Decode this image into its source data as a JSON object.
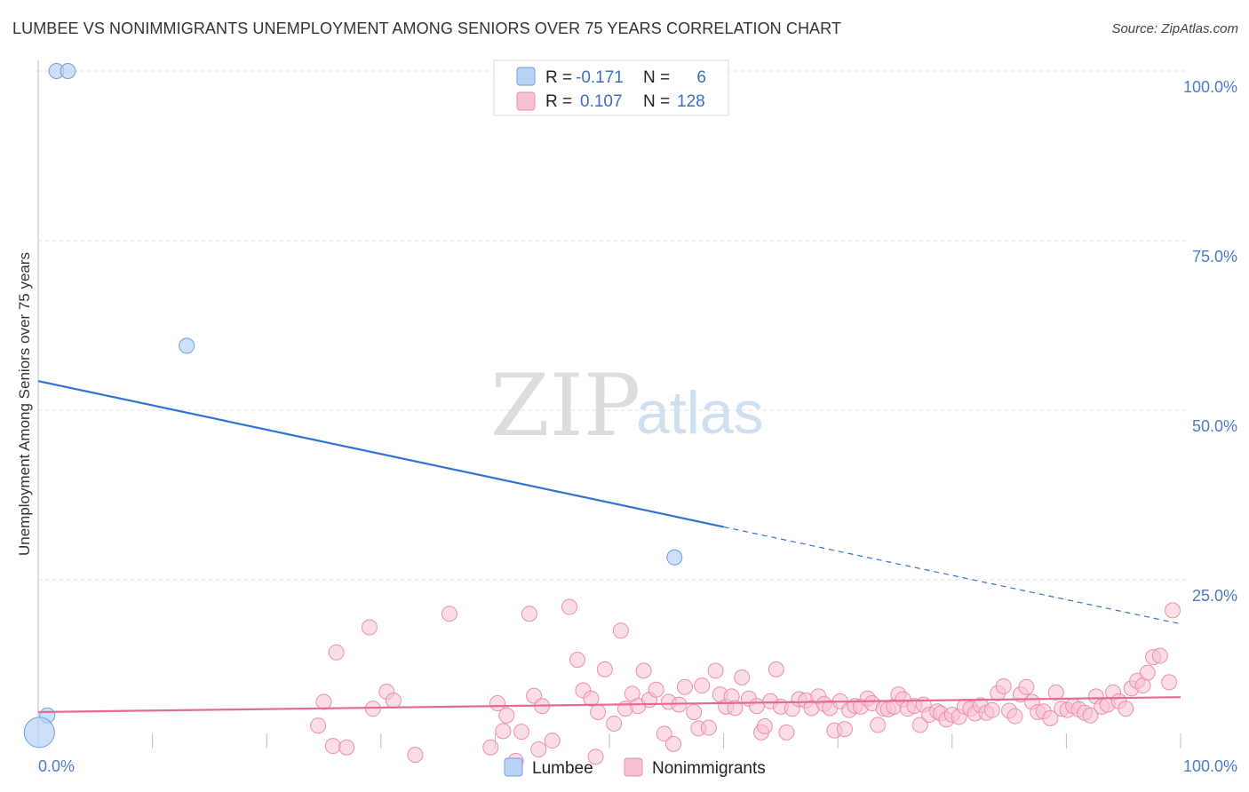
{
  "header": {
    "title": "LUMBEE VS NONIMMIGRANTS UNEMPLOYMENT AMONG SENIORS OVER 75 YEARS CORRELATION CHART",
    "source": "Source: ZipAtlas.com"
  },
  "watermark": {
    "zip": "ZIP",
    "atlas": "atlas"
  },
  "colors": {
    "lumbee_fill": "#b8d3f5",
    "lumbee_stroke": "#6f9fdc",
    "lumbee_line": "#2f73d4",
    "nonimm_fill": "#f7c1d1",
    "nonimm_stroke": "#ea8fab",
    "nonimm_line": "#e56a93",
    "grid": "#dddddd",
    "axis_label": "#4a7ac9"
  },
  "legend": {
    "rows": [
      {
        "r_label": "R =",
        "r_value": "-0.171",
        "n_label": "N =",
        "n_value": "6"
      },
      {
        "r_label": "R =",
        "r_value": "0.107",
        "n_label": "N =",
        "n_value": "128"
      }
    ]
  },
  "bottom_legend": {
    "items": [
      "Lumbee",
      "Nonimmigrants"
    ]
  },
  "chart_data": {
    "type": "scatter",
    "title": "LUMBEE VS NONIMMIGRANTS UNEMPLOYMENT AMONG SENIORS OVER 75 YEARS CORRELATION CHART",
    "xlabel": "",
    "ylabel": "Unemployment Among Seniors over 75 years",
    "xlim": [
      0,
      100
    ],
    "ylim": [
      0,
      100
    ],
    "x_tick_labels": [
      "0.0%",
      "100.0%"
    ],
    "y_tick_labels": [
      "100.0%",
      "75.0%",
      "50.0%",
      "25.0%"
    ],
    "y_tick_values": [
      100,
      75,
      50,
      25
    ],
    "grid": true,
    "legend_position": "top-center",
    "series": [
      {
        "name": "Lumbee",
        "R": -0.171,
        "N": 6,
        "trend": {
          "x0": 0,
          "y0": 54.3,
          "x1": 60,
          "y1": 32.8,
          "dashed_to_x": 100,
          "dashed_to_y": 18.5
        },
        "points": [
          {
            "x": 1.6,
            "y": 100.0
          },
          {
            "x": 2.6,
            "y": 100.0
          },
          {
            "x": 13.0,
            "y": 59.5
          },
          {
            "x": 55.7,
            "y": 28.3
          },
          {
            "x": 0.8,
            "y": 5.0
          },
          {
            "x": 0.1,
            "y": 2.5,
            "big": true
          }
        ]
      },
      {
        "name": "Nonimmigrants",
        "R": 0.107,
        "N": 128,
        "trend": {
          "x0": 0,
          "y0": 5.5,
          "x1": 100,
          "y1": 7.7
        },
        "points": [
          {
            "x": 24.5,
            "y": 3.5
          },
          {
            "x": 25.0,
            "y": 7.0
          },
          {
            "x": 25.8,
            "y": 0.5
          },
          {
            "x": 26.1,
            "y": 14.3
          },
          {
            "x": 27.0,
            "y": 0.3
          },
          {
            "x": 29.0,
            "y": 18.0
          },
          {
            "x": 29.3,
            "y": 6.0
          },
          {
            "x": 30.5,
            "y": 8.5
          },
          {
            "x": 31.1,
            "y": 7.2
          },
          {
            "x": 33.0,
            "y": -0.8
          },
          {
            "x": 36.0,
            "y": 20.0
          },
          {
            "x": 39.6,
            "y": 0.3
          },
          {
            "x": 40.2,
            "y": 6.8
          },
          {
            "x": 40.7,
            "y": 2.7
          },
          {
            "x": 41.0,
            "y": 5.0
          },
          {
            "x": 41.8,
            "y": -1.7
          },
          {
            "x": 42.3,
            "y": 2.6
          },
          {
            "x": 43.0,
            "y": 20.0
          },
          {
            "x": 43.4,
            "y": 7.9
          },
          {
            "x": 43.8,
            "y": 0.0
          },
          {
            "x": 44.1,
            "y": 6.4
          },
          {
            "x": 45.0,
            "y": 1.3
          },
          {
            "x": 46.5,
            "y": 21.0
          },
          {
            "x": 47.2,
            "y": 13.2
          },
          {
            "x": 47.7,
            "y": 8.7
          },
          {
            "x": 48.4,
            "y": 7.5
          },
          {
            "x": 48.8,
            "y": -1.1
          },
          {
            "x": 49.0,
            "y": 5.5
          },
          {
            "x": 49.6,
            "y": 11.8
          },
          {
            "x": 50.4,
            "y": 3.8
          },
          {
            "x": 51.0,
            "y": 17.5
          },
          {
            "x": 51.4,
            "y": 6.0
          },
          {
            "x": 52.0,
            "y": 8.2
          },
          {
            "x": 52.5,
            "y": 6.4
          },
          {
            "x": 53.0,
            "y": 11.6
          },
          {
            "x": 53.5,
            "y": 7.3
          },
          {
            "x": 54.1,
            "y": 8.8
          },
          {
            "x": 54.8,
            "y": 2.3
          },
          {
            "x": 55.2,
            "y": 7.0
          },
          {
            "x": 55.6,
            "y": 0.8
          },
          {
            "x": 56.1,
            "y": 6.6
          },
          {
            "x": 56.6,
            "y": 9.2
          },
          {
            "x": 57.4,
            "y": 5.5
          },
          {
            "x": 57.8,
            "y": 3.1
          },
          {
            "x": 58.1,
            "y": 9.4
          },
          {
            "x": 58.7,
            "y": 3.2
          },
          {
            "x": 59.3,
            "y": 11.6
          },
          {
            "x": 59.7,
            "y": 8.1
          },
          {
            "x": 60.2,
            "y": 6.3
          },
          {
            "x": 60.7,
            "y": 7.8
          },
          {
            "x": 61.0,
            "y": 6.1
          },
          {
            "x": 61.6,
            "y": 10.6
          },
          {
            "x": 62.2,
            "y": 7.5
          },
          {
            "x": 62.9,
            "y": 6.4
          },
          {
            "x": 63.3,
            "y": 2.5
          },
          {
            "x": 63.6,
            "y": 3.4
          },
          {
            "x": 64.1,
            "y": 7.1
          },
          {
            "x": 64.6,
            "y": 11.8
          },
          {
            "x": 65.0,
            "y": 6.3
          },
          {
            "x": 65.5,
            "y": 2.5
          },
          {
            "x": 66.0,
            "y": 6.0
          },
          {
            "x": 66.6,
            "y": 7.4
          },
          {
            "x": 67.2,
            "y": 7.2
          },
          {
            "x": 67.7,
            "y": 6.1
          },
          {
            "x": 68.3,
            "y": 7.8
          },
          {
            "x": 68.8,
            "y": 6.7
          },
          {
            "x": 69.3,
            "y": 6.1
          },
          {
            "x": 69.7,
            "y": 2.8
          },
          {
            "x": 70.2,
            "y": 7.1
          },
          {
            "x": 70.6,
            "y": 3.0
          },
          {
            "x": 71.0,
            "y": 5.8
          },
          {
            "x": 71.5,
            "y": 6.4
          },
          {
            "x": 72.0,
            "y": 6.3
          },
          {
            "x": 72.6,
            "y": 7.5
          },
          {
            "x": 73.0,
            "y": 6.8
          },
          {
            "x": 73.5,
            "y": 3.6
          },
          {
            "x": 74.0,
            "y": 6.0
          },
          {
            "x": 74.4,
            "y": 5.9
          },
          {
            "x": 74.9,
            "y": 6.3
          },
          {
            "x": 75.3,
            "y": 8.1
          },
          {
            "x": 75.7,
            "y": 7.4
          },
          {
            "x": 76.1,
            "y": 6.0
          },
          {
            "x": 76.7,
            "y": 6.4
          },
          {
            "x": 77.2,
            "y": 3.6
          },
          {
            "x": 77.5,
            "y": 6.6
          },
          {
            "x": 78.0,
            "y": 5.1
          },
          {
            "x": 78.7,
            "y": 5.6
          },
          {
            "x": 79.0,
            "y": 5.3
          },
          {
            "x": 79.5,
            "y": 4.4
          },
          {
            "x": 80.0,
            "y": 5.1
          },
          {
            "x": 80.6,
            "y": 4.8
          },
          {
            "x": 81.1,
            "y": 6.3
          },
          {
            "x": 81.6,
            "y": 6.0
          },
          {
            "x": 82.0,
            "y": 5.3
          },
          {
            "x": 82.5,
            "y": 6.5
          },
          {
            "x": 83.0,
            "y": 5.4
          },
          {
            "x": 83.5,
            "y": 5.8
          },
          {
            "x": 84.0,
            "y": 8.3
          },
          {
            "x": 84.5,
            "y": 9.3
          },
          {
            "x": 85.0,
            "y": 5.7
          },
          {
            "x": 85.5,
            "y": 4.9
          },
          {
            "x": 86.0,
            "y": 8.1
          },
          {
            "x": 86.5,
            "y": 9.2
          },
          {
            "x": 87.0,
            "y": 7.0
          },
          {
            "x": 87.5,
            "y": 5.5
          },
          {
            "x": 88.0,
            "y": 5.6
          },
          {
            "x": 88.6,
            "y": 4.6
          },
          {
            "x": 89.1,
            "y": 8.4
          },
          {
            "x": 89.6,
            "y": 6.0
          },
          {
            "x": 90.1,
            "y": 5.8
          },
          {
            "x": 90.6,
            "y": 6.4
          },
          {
            "x": 91.1,
            "y": 5.9
          },
          {
            "x": 91.6,
            "y": 5.4
          },
          {
            "x": 92.1,
            "y": 5.0
          },
          {
            "x": 92.6,
            "y": 7.8
          },
          {
            "x": 93.1,
            "y": 6.3
          },
          {
            "x": 93.6,
            "y": 6.6
          },
          {
            "x": 94.1,
            "y": 8.4
          },
          {
            "x": 94.6,
            "y": 7.1
          },
          {
            "x": 95.2,
            "y": 6.0
          },
          {
            "x": 95.7,
            "y": 9.0
          },
          {
            "x": 96.2,
            "y": 10.1
          },
          {
            "x": 96.7,
            "y": 9.4
          },
          {
            "x": 97.1,
            "y": 11.3
          },
          {
            "x": 97.6,
            "y": 13.6
          },
          {
            "x": 98.2,
            "y": 13.8
          },
          {
            "x": 99.3,
            "y": 20.5
          },
          {
            "x": 99.0,
            "y": 9.9
          }
        ]
      }
    ]
  }
}
